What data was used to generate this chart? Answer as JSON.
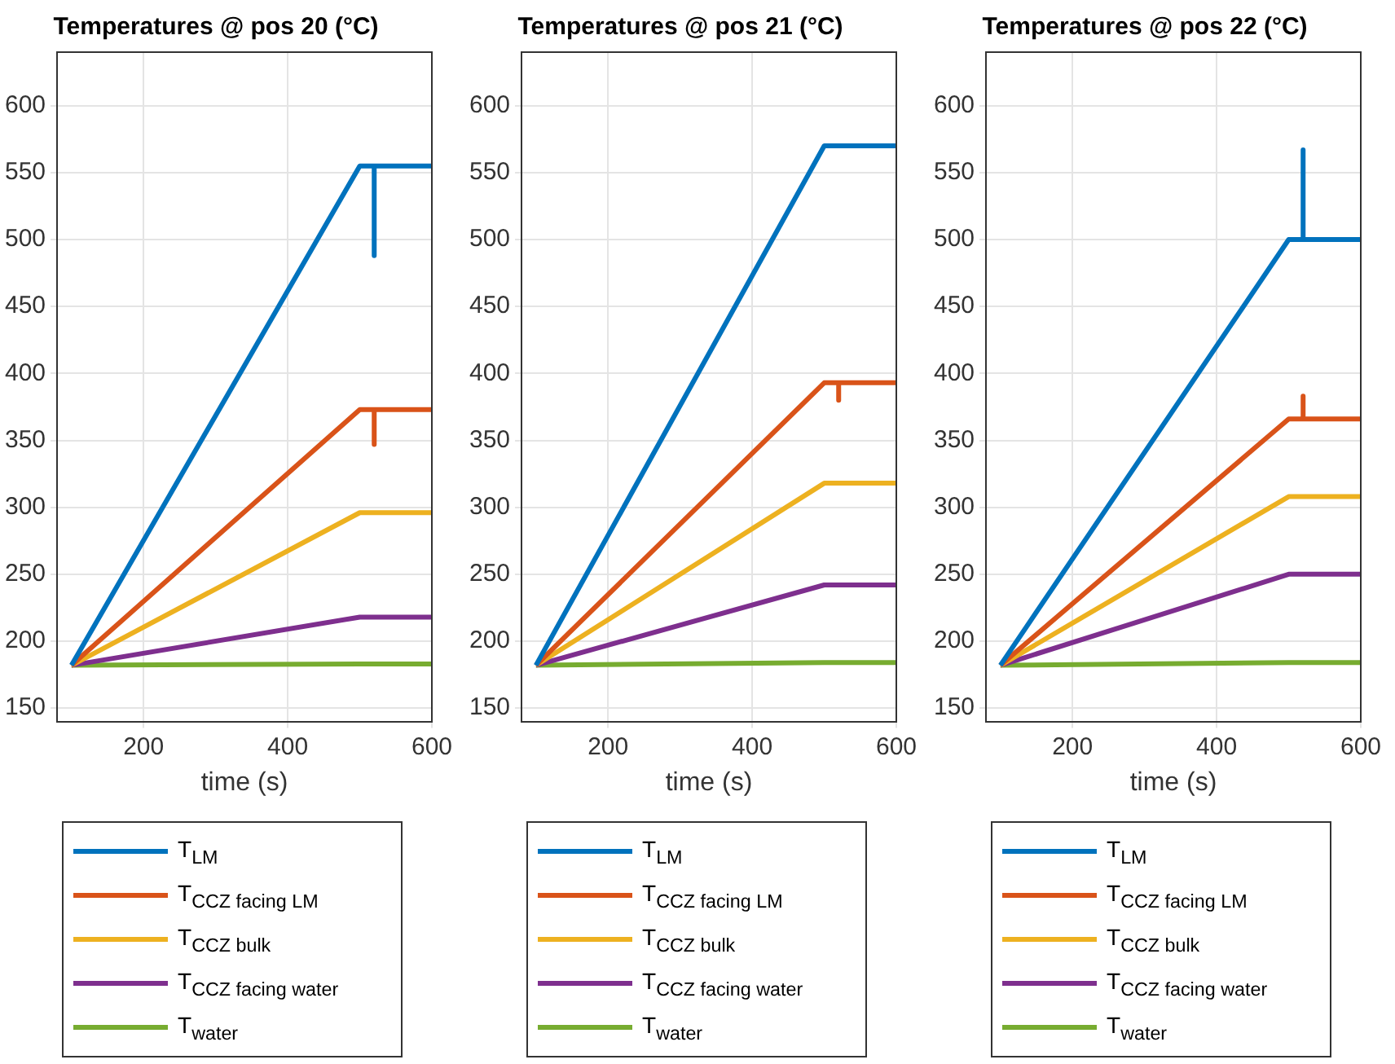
{
  "chart_data": [
    {
      "type": "line",
      "title": "Temperatures @ pos 20 (°C)",
      "xlabel": "time (s)",
      "xlim": [
        80,
        600
      ],
      "xticks": [
        200,
        400,
        600
      ],
      "ylim": [
        140,
        640
      ],
      "yticks": [
        150,
        200,
        250,
        300,
        350,
        400,
        450,
        500,
        550,
        600
      ],
      "grid": true,
      "legend": "bottom",
      "series": [
        {
          "name": "T$_{LM}$",
          "color": "#0072bd",
          "x": [
            100,
            500,
            520,
            520,
            520,
            600
          ],
          "values": [
            182,
            555,
            555,
            488,
            555,
            555
          ]
        },
        {
          "name": "T$_{CCZ facing LM}$",
          "color": "#d95319",
          "x": [
            100,
            500,
            520,
            520,
            520,
            600
          ],
          "values": [
            182,
            373,
            373,
            347,
            373,
            373
          ]
        },
        {
          "name": "T$_{CCZ bulk}$",
          "color": "#edb120",
          "x": [
            100,
            500,
            600
          ],
          "values": [
            182,
            296,
            296
          ]
        },
        {
          "name": "T$_{CCZ facing water}$",
          "color": "#7e2f8e",
          "x": [
            100,
            500,
            600
          ],
          "values": [
            182,
            218,
            218
          ]
        },
        {
          "name": "T$_{water}$",
          "color": "#77ac30",
          "x": [
            100,
            500,
            600
          ],
          "values": [
            182,
            183,
            183
          ]
        }
      ]
    },
    {
      "type": "line",
      "title": "Temperatures @ pos 21 (°C)",
      "xlabel": "time (s)",
      "xlim": [
        80,
        600
      ],
      "xticks": [
        200,
        400,
        600
      ],
      "ylim": [
        140,
        640
      ],
      "yticks": [
        150,
        200,
        250,
        300,
        350,
        400,
        450,
        500,
        550,
        600
      ],
      "grid": true,
      "legend": "bottom",
      "series": [
        {
          "name": "T$_{LM}$",
          "color": "#0072bd",
          "x": [
            100,
            500,
            600
          ],
          "values": [
            182,
            570,
            570
          ]
        },
        {
          "name": "T$_{CCZ facing LM}$",
          "color": "#d95319",
          "x": [
            100,
            500,
            520,
            520,
            520,
            600
          ],
          "values": [
            182,
            393,
            393,
            380,
            393,
            393
          ]
        },
        {
          "name": "T$_{CCZ bulk}$",
          "color": "#edb120",
          "x": [
            100,
            500,
            600
          ],
          "values": [
            182,
            318,
            318
          ]
        },
        {
          "name": "T$_{CCZ facing water}$",
          "color": "#7e2f8e",
          "x": [
            100,
            500,
            600
          ],
          "values": [
            182,
            242,
            242
          ]
        },
        {
          "name": "T$_{water}$",
          "color": "#77ac30",
          "x": [
            100,
            500,
            600
          ],
          "values": [
            182,
            184,
            184
          ]
        }
      ]
    },
    {
      "type": "line",
      "title": "Temperatures @ pos 22 (°C)",
      "xlabel": "time (s)",
      "xlim": [
        80,
        600
      ],
      "xticks": [
        200,
        400,
        600
      ],
      "ylim": [
        140,
        640
      ],
      "yticks": [
        150,
        200,
        250,
        300,
        350,
        400,
        450,
        500,
        550,
        600
      ],
      "grid": true,
      "legend": "bottom",
      "series": [
        {
          "name": "T$_{LM}$",
          "color": "#0072bd",
          "x": [
            100,
            500,
            520,
            520,
            520,
            600
          ],
          "values": [
            182,
            500,
            500,
            567,
            500,
            500
          ]
        },
        {
          "name": "T$_{CCZ facing LM}$",
          "color": "#d95319",
          "x": [
            100,
            500,
            520,
            520,
            520,
            600
          ],
          "values": [
            182,
            366,
            366,
            383,
            366,
            366
          ]
        },
        {
          "name": "T$_{CCZ bulk}$",
          "color": "#edb120",
          "x": [
            100,
            500,
            600
          ],
          "values": [
            182,
            308,
            308
          ]
        },
        {
          "name": "T$_{CCZ facing water}$",
          "color": "#7e2f8e",
          "x": [
            100,
            500,
            600
          ],
          "values": [
            182,
            250,
            250
          ]
        },
        {
          "name": "T$_{water}$",
          "color": "#77ac30",
          "x": [
            100,
            500,
            600
          ],
          "values": [
            182,
            184,
            184
          ]
        }
      ]
    }
  ]
}
